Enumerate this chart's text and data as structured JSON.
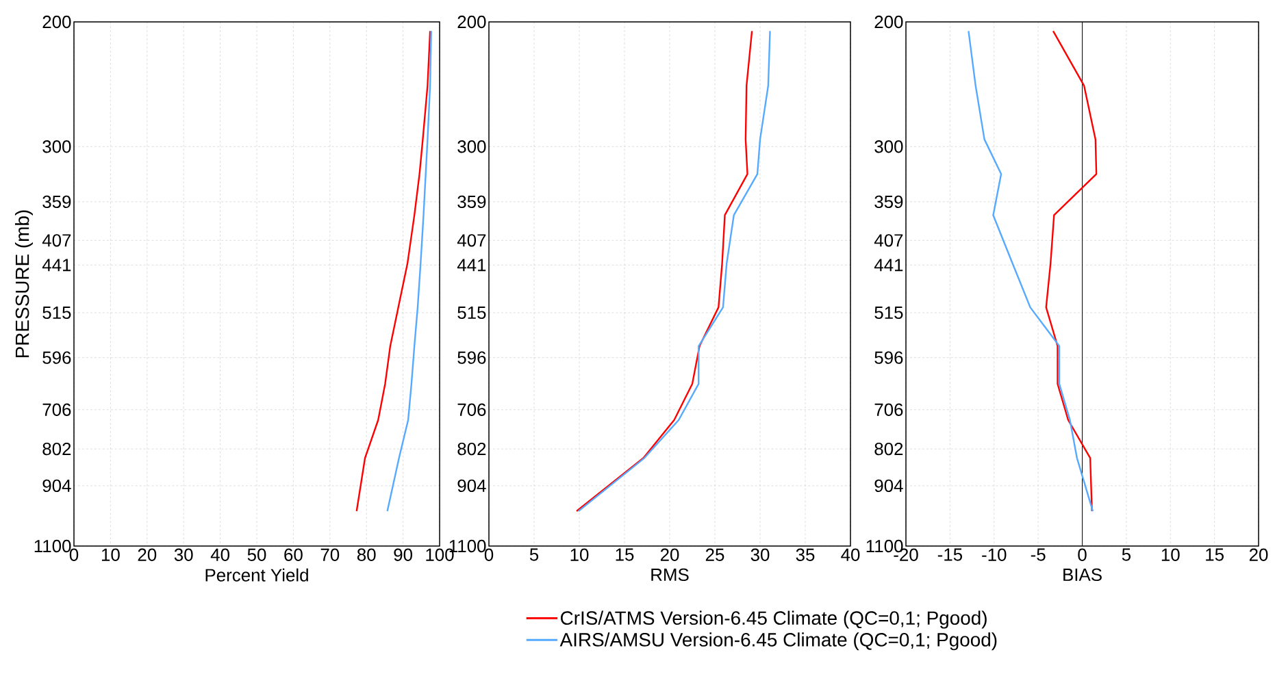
{
  "chart_data": [
    {
      "type": "line",
      "xlabel": "Percent Yield",
      "ylabel": "PRESSURE (mb)",
      "xlim": [
        0,
        100
      ],
      "xticks": [
        0,
        10,
        20,
        30,
        40,
        50,
        60,
        70,
        80,
        90,
        100
      ],
      "ylim": [
        1100,
        200
      ],
      "yticks": [
        200,
        300,
        359,
        407,
        441,
        515,
        596,
        706,
        802,
        904,
        1100
      ],
      "log": "y",
      "grid": true,
      "series": [
        {
          "color": "#ff0000",
          "x": [
            97.4,
            96.7,
            95.4,
            94.5,
            93.1,
            91.2,
            88.7,
            86.5,
            85.1,
            83.2,
            79.6,
            77.3
          ],
          "values": [
            206,
            246,
            293,
            328,
            375,
            439,
            506,
            574,
            649,
            730,
            826,
            982
          ]
        },
        {
          "color": "#55aaff",
          "x": [
            97.7,
            97.4,
            96.7,
            96.2,
            95.6,
            94.8,
            94.0,
            93.1,
            92.3,
            91.4,
            88.9,
            85.7
          ],
          "values": [
            206,
            246,
            293,
            328,
            375,
            439,
            506,
            574,
            649,
            730,
            826,
            982
          ]
        }
      ]
    },
    {
      "type": "line",
      "xlabel": "RMS",
      "xlim": [
        0,
        40
      ],
      "xticks": [
        0,
        5,
        10,
        15,
        20,
        25,
        30,
        35,
        40
      ],
      "ylim": [
        1100,
        200
      ],
      "yticks": [
        200,
        300,
        359,
        407,
        441,
        515,
        596,
        706,
        802,
        904,
        1100
      ],
      "log": "y",
      "grid": true,
      "legend": "bottom",
      "series": [
        {
          "name": "CrIS/ATMS Version-6.45 Climate (QC=0,1; Pgood)",
          "color": "#ff0000",
          "x": [
            29.1,
            28.5,
            28.4,
            28.6,
            26.1,
            25.8,
            25.4,
            23.3,
            22.5,
            20.5,
            17.1,
            9.7
          ],
          "values": [
            206,
            246,
            293,
            328,
            375,
            439,
            506,
            574,
            649,
            730,
            826,
            982
          ]
        },
        {
          "name": "AIRS/AMSU Version-6.45 Climate (QC=0,1; Pgood)",
          "color": "#55aaff",
          "x": [
            31.1,
            30.9,
            30.0,
            29.7,
            27.1,
            26.3,
            25.9,
            23.2,
            23.2,
            21.0,
            17.2,
            9.9
          ],
          "values": [
            206,
            246,
            293,
            328,
            375,
            439,
            506,
            574,
            649,
            730,
            826,
            982
          ]
        }
      ]
    },
    {
      "type": "line",
      "xlabel": "BIAS",
      "xlim": [
        -20,
        20
      ],
      "xticks": [
        -20,
        -15,
        -10,
        -5,
        0,
        5,
        10,
        15,
        20
      ],
      "ylim": [
        1100,
        200
      ],
      "yticks": [
        200,
        300,
        359,
        407,
        441,
        515,
        596,
        706,
        802,
        904,
        1100
      ],
      "log": "y",
      "grid": true,
      "ref_lines": [
        {
          "axis": "x",
          "value": 0,
          "color": "#000000"
        }
      ],
      "series": [
        {
          "color": "#ff0000",
          "x": [
            -3.3,
            0.2,
            1.5,
            1.6,
            -3.2,
            -3.6,
            -4.1,
            -2.8,
            -2.8,
            -1.6,
            0.9,
            1.1
          ],
          "values": [
            206,
            246,
            293,
            328,
            375,
            439,
            506,
            574,
            649,
            730,
            826,
            982
          ]
        },
        {
          "color": "#55aaff",
          "x": [
            -12.9,
            -12.1,
            -11.1,
            -9.2,
            -10.1,
            -7.9,
            -5.9,
            -2.6,
            -2.6,
            -1.4,
            -0.6,
            1.2
          ],
          "values": [
            206,
            246,
            293,
            328,
            375,
            439,
            506,
            574,
            649,
            730,
            826,
            982
          ]
        }
      ]
    }
  ]
}
